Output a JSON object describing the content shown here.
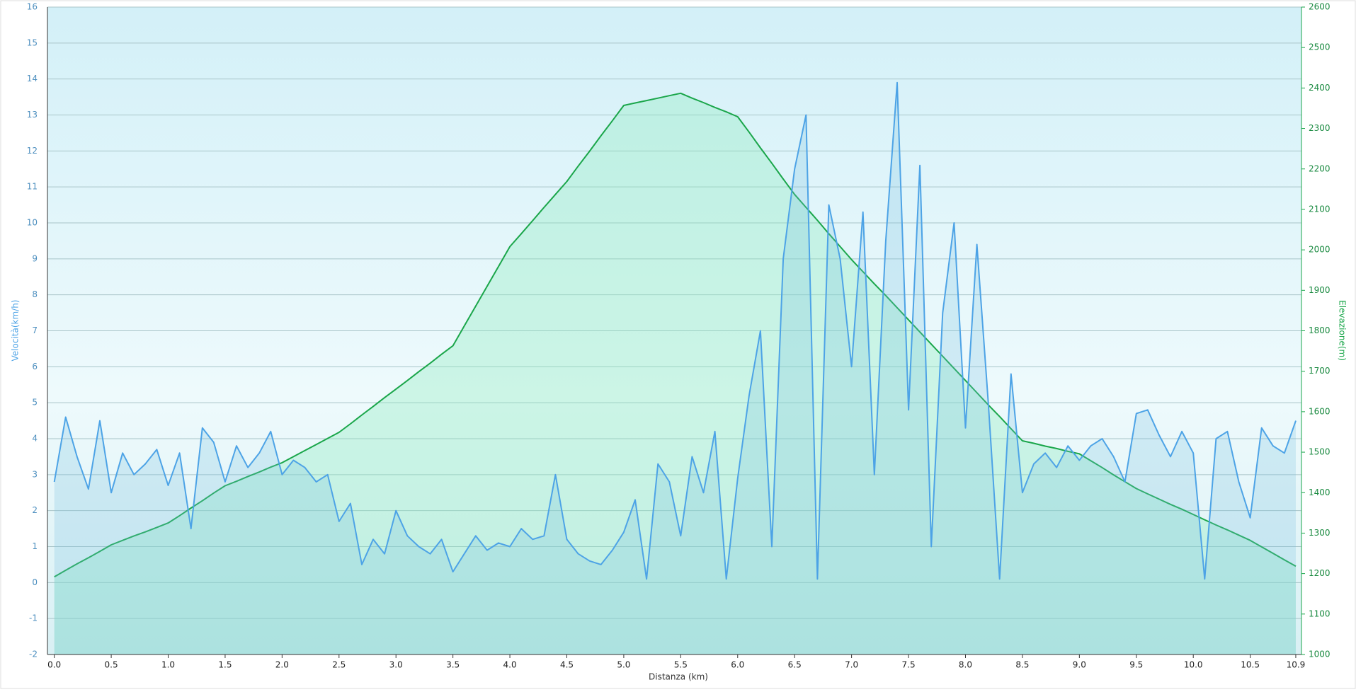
{
  "chart_data": {
    "type": "line",
    "x_label": "Distanza  (km)",
    "y_label": "Velocità(km/h)",
    "y2_label": "Elevazione(m)",
    "xlim": [
      -0.06,
      10.95
    ],
    "xticks": [
      {
        "value": 0,
        "label": "0.0"
      },
      0.5,
      {
        "value": 1,
        "label": "1.0"
      },
      1.5,
      {
        "value": 2,
        "label": "2.0"
      },
      2.5,
      {
        "value": 3,
        "label": "3.0"
      },
      3.5,
      {
        "value": 4,
        "label": "4.0"
      },
      4.5,
      {
        "value": 5,
        "label": "5.0"
      },
      5.5,
      {
        "value": 6,
        "label": "6.0"
      },
      6.5,
      {
        "value": 7,
        "label": "7.0"
      },
      7.5,
      {
        "value": 8,
        "label": "8.0"
      },
      8.5,
      {
        "value": 9,
        "label": "9.0"
      },
      9.5,
      {
        "value": 10,
        "label": "10.0"
      },
      10.5,
      10.9
    ],
    "ylim": [
      -2,
      16
    ],
    "yticks": [
      -2,
      -1,
      0,
      1,
      2,
      3,
      4,
      5,
      6,
      7,
      8,
      9,
      10,
      11,
      12,
      13,
      14,
      15,
      16
    ],
    "y2lim": [
      1000,
      2600
    ],
    "y2ticks": [
      1000,
      1100,
      1200,
      1300,
      1400,
      1500,
      1600,
      1700,
      1800,
      1900,
      2000,
      2100,
      2200,
      2300,
      2400,
      2500,
      2600
    ],
    "grid": true,
    "x": [
      0.0,
      0.1,
      0.2,
      0.3,
      0.4,
      0.5,
      0.6,
      0.7,
      0.8,
      0.9,
      1.0,
      1.1,
      1.2,
      1.3,
      1.4,
      1.5,
      1.6,
      1.7,
      1.8,
      1.9,
      2.0,
      2.1,
      2.2,
      2.3,
      2.4,
      2.5,
      2.6,
      2.7,
      2.8,
      2.9,
      3.0,
      3.1,
      3.2,
      3.3,
      3.4,
      3.5,
      3.6,
      3.7,
      3.8,
      3.9,
      4.0,
      4.1,
      4.2,
      4.3,
      4.4,
      4.5,
      4.6,
      4.7,
      4.8,
      4.9,
      5.0,
      5.1,
      5.2,
      5.3,
      5.4,
      5.5,
      5.6,
      5.7,
      5.8,
      5.9,
      6.0,
      6.1,
      6.2,
      6.3,
      6.4,
      6.5,
      6.6,
      6.7,
      6.8,
      6.9,
      7.0,
      7.1,
      7.2,
      7.3,
      7.4,
      7.5,
      7.6,
      7.7,
      7.8,
      7.9,
      8.0,
      8.1,
      8.2,
      8.3,
      8.4,
      8.5,
      8.6,
      8.7,
      8.8,
      8.9,
      9.0,
      9.1,
      9.2,
      9.3,
      9.4,
      9.5,
      9.6,
      9.7,
      9.8,
      9.9,
      10.0,
      10.1,
      10.2,
      10.3,
      10.4,
      10.5,
      10.6,
      10.7,
      10.8,
      10.9
    ],
    "series": [
      {
        "name": "Elevazione",
        "axis": "y2",
        "color": "#1aa64a",
        "fill": "rgba(140,235,190,0.35)",
        "values": [
          1192,
          1208,
          1224,
          1239,
          1255,
          1271,
          1282,
          1293,
          1303,
          1314,
          1325,
          1343,
          1362,
          1380,
          1399,
          1417,
          1428,
          1440,
          1451,
          1463,
          1474,
          1489,
          1504,
          1519,
          1534,
          1549,
          1570,
          1592,
          1613,
          1635,
          1656,
          1677,
          1699,
          1720,
          1742,
          1763,
          1812,
          1861,
          1910,
          1959,
          2008,
          2040,
          2072,
          2105,
          2137,
          2169,
          2207,
          2244,
          2282,
          2319,
          2357,
          2363,
          2369,
          2375,
          2381,
          2387,
          2375,
          2364,
          2352,
          2341,
          2329,
          2291,
          2252,
          2214,
          2175,
          2137,
          2105,
          2073,
          2040,
          2008,
          1976,
          1946,
          1916,
          1887,
          1857,
          1827,
          1797,
          1767,
          1737,
          1707,
          1677,
          1647,
          1617,
          1588,
          1558,
          1528,
          1522,
          1515,
          1509,
          1502,
          1496,
          1479,
          1462,
          1444,
          1427,
          1410,
          1397,
          1384,
          1371,
          1359,
          1346,
          1333,
          1320,
          1308,
          1295,
          1282,
          1266,
          1250,
          1234,
          1218
        ]
      },
      {
        "name": "Velocità",
        "axis": "y",
        "color": "#4da3e6",
        "fill": "rgba(120,190,225,0.25)",
        "values": [
          2.8,
          4.6,
          3.5,
          2.6,
          4.5,
          2.5,
          3.6,
          3.0,
          3.3,
          3.7,
          2.7,
          3.6,
          1.5,
          4.3,
          3.9,
          2.8,
          3.8,
          3.2,
          3.6,
          4.2,
          3.0,
          3.4,
          3.2,
          2.8,
          3.0,
          1.7,
          2.2,
          0.5,
          1.2,
          0.8,
          2.0,
          1.3,
          1.0,
          0.8,
          1.2,
          0.3,
          0.8,
          1.3,
          0.9,
          1.1,
          1.0,
          1.5,
          1.2,
          1.3,
          3.0,
          1.2,
          0.8,
          0.6,
          0.5,
          0.9,
          1.4,
          2.3,
          0.1,
          3.3,
          2.8,
          1.3,
          3.5,
          2.5,
          4.2,
          0.1,
          2.9,
          5.2,
          7.0,
          1.0,
          9.0,
          11.5,
          13.0,
          0.1,
          10.5,
          9.0,
          6.0,
          10.3,
          3.0,
          9.5,
          13.9,
          4.8,
          11.6,
          1.0,
          7.5,
          10.0,
          4.3,
          9.4,
          5.0,
          0.1,
          5.8,
          2.5,
          3.3,
          3.6,
          3.2,
          3.8,
          3.4,
          3.8,
          4.0,
          3.5,
          2.8,
          4.7,
          4.8,
          4.1,
          3.5,
          4.2,
          3.6,
          0.1,
          4.0,
          4.2,
          2.8,
          1.8,
          4.3,
          3.8,
          3.6,
          4.5
        ]
      }
    ]
  }
}
